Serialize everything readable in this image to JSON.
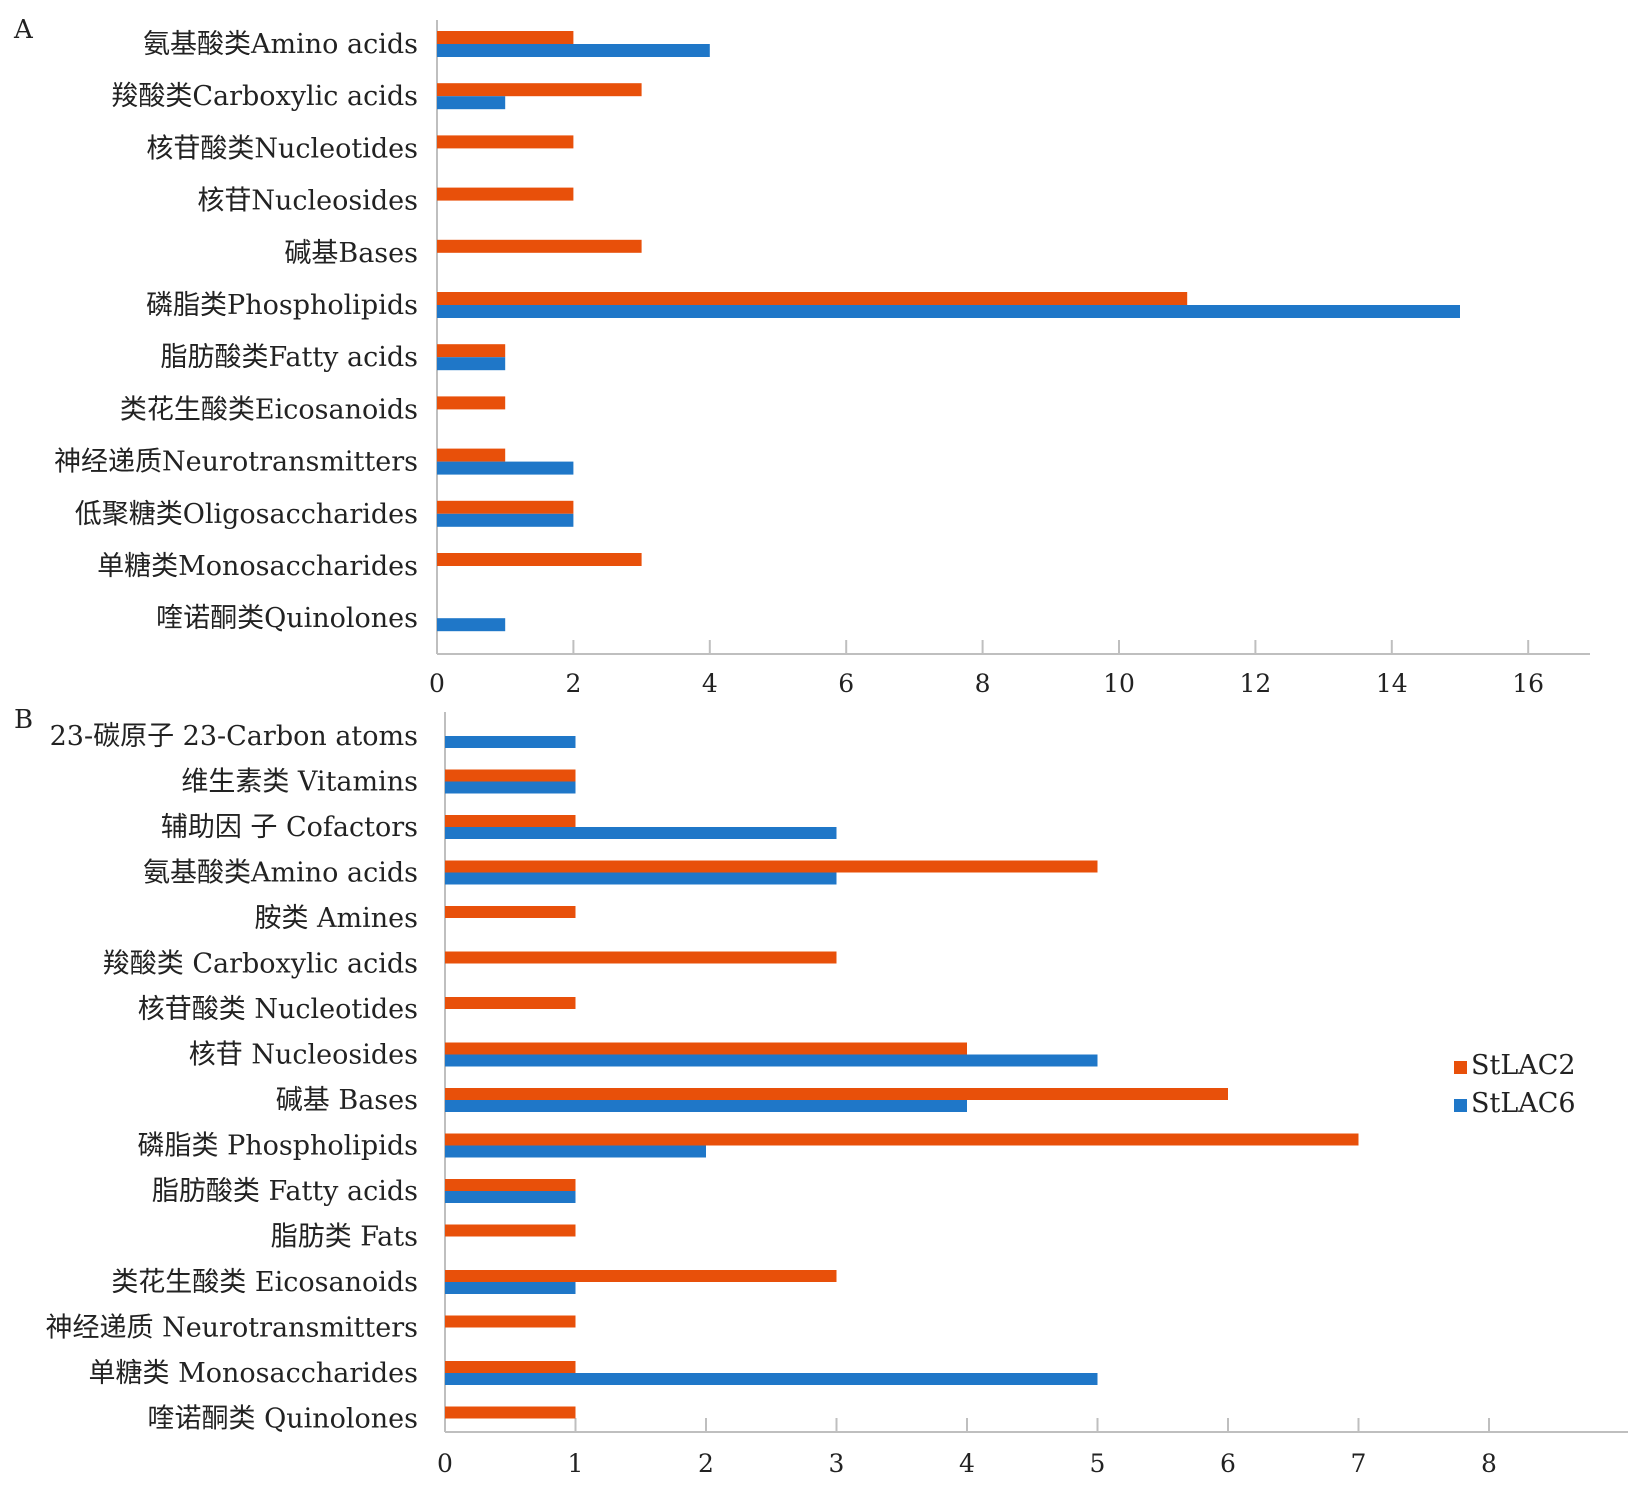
{
  "chart_data": [
    {
      "panel_label": "A",
      "type": "bar",
      "orientation": "horizontal",
      "categories": [
        "氨基酸类Amino acids",
        "羧酸类Carboxylic acids",
        "核苷酸类Nucleotides",
        "核苷Nucleosides",
        "碱基Bases",
        "磷脂类Phospholipids",
        "脂肪酸类Fatty acids",
        "类花生酸类Eicosanoids",
        "神经递质Neurotransmitters",
        "低聚糖类Oligosaccharides",
        "单糖类Monosaccharides",
        "喹诺酮类Quinolones"
      ],
      "series": [
        {
          "name": "StLAC2",
          "color": "#E8500A",
          "values": [
            2,
            3,
            2,
            2,
            3,
            11,
            1,
            1,
            1,
            2,
            3,
            0
          ]
        },
        {
          "name": "StLAC6",
          "color": "#1F77C8",
          "values": [
            4,
            1,
            0,
            0,
            0,
            15,
            1,
            0,
            2,
            2,
            0,
            1
          ]
        }
      ],
      "xlim": [
        0,
        17
      ],
      "xticks": [
        0,
        2,
        4,
        6,
        8,
        10,
        12,
        14,
        16
      ]
    },
    {
      "panel_label": "B",
      "type": "bar",
      "orientation": "horizontal",
      "categories": [
        "23-碳原子 23-Carbon  atoms",
        "维生素类 Vitamins",
        "辅助因 子 Cofactors",
        "氨基酸类Amino acids",
        "胺类 Amines",
        "羧酸类 Carboxylic acids",
        "核苷酸类 Nucleotides",
        "核苷 Nucleosides",
        "碱基 Bases",
        "磷脂类 Phospholipids",
        "脂肪酸类 Fatty acids",
        "脂肪类 Fats",
        "类花生酸类 Eicosanoids",
        "神经递质 Neurotransmitters",
        "单糖类 Monosaccharides",
        "喹诺酮类 Quinolones"
      ],
      "series": [
        {
          "name": "StLAC2",
          "color": "#E8500A",
          "values": [
            0,
            1,
            1,
            5,
            1,
            3,
            1,
            4,
            6,
            7,
            1,
            1,
            3,
            1,
            1,
            1
          ]
        },
        {
          "name": "StLAC6",
          "color": "#1F77C8",
          "values": [
            1,
            1,
            3,
            3,
            0,
            0,
            0,
            5,
            4,
            2,
            1,
            0,
            1,
            0,
            5,
            0
          ]
        }
      ],
      "xlim": [
        0,
        9
      ],
      "xticks": [
        0,
        1,
        2,
        3,
        4,
        5,
        6,
        7,
        8
      ],
      "legend": {
        "position": "right",
        "entries": [
          "StLAC2",
          "StLAC6"
        ]
      }
    }
  ]
}
